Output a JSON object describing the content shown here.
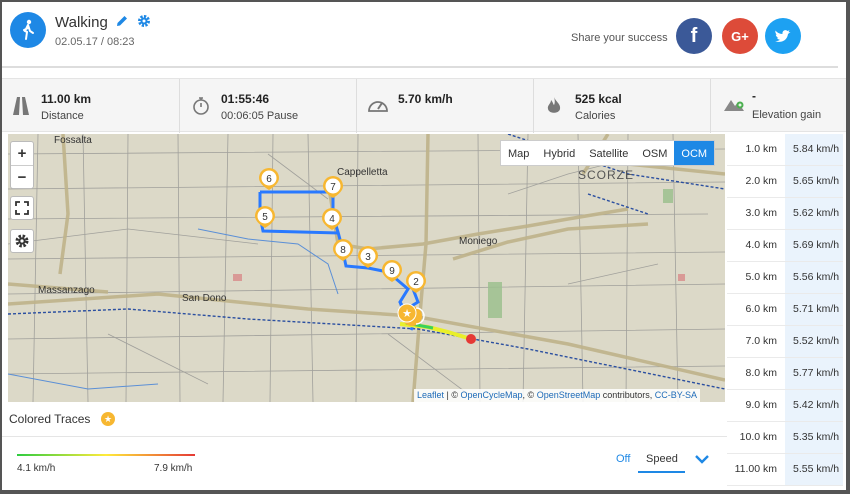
{
  "activity": {
    "title": "Walking",
    "date": "02.05.17 / 08:23"
  },
  "share": {
    "text": "Share your success",
    "facebook": "f",
    "google": "G+"
  },
  "stats": [
    {
      "icon": "road-icon",
      "value": "11.00 km",
      "label": "Distance"
    },
    {
      "icon": "stopwatch-icon",
      "value": "01:55:46",
      "label": "00:06:05 Pause"
    },
    {
      "icon": "speedometer-icon",
      "value": "5.70 km/h",
      "label": ""
    },
    {
      "icon": "flame-icon",
      "value": "525 kcal",
      "label": "Calories"
    },
    {
      "icon": "elevation-icon",
      "value": "-",
      "label": "Elevation gain"
    }
  ],
  "map": {
    "layers": [
      "Map",
      "Hybrid",
      "Satellite",
      "OSM",
      "OCM"
    ],
    "active_layer": "OCM",
    "zoom_in": "+",
    "zoom_out": "−",
    "places": [
      "Fossalta",
      "Cappelletta",
      "SCORZE",
      "Moniego",
      "Massanzago",
      "San Dono"
    ],
    "markers": [
      "6",
      "7",
      "5",
      "4",
      "8",
      "3",
      "9",
      "2"
    ],
    "attribution": {
      "leaflet": "Leaflet",
      "sep1": " | © ",
      "ocm": "OpenCycleMap",
      "sep2": ", © ",
      "osm": "OpenStreetMap",
      "contrib": " contributors, ",
      "license": "CC-BY-SA"
    }
  },
  "splits": [
    {
      "km": "1.0 km",
      "speed": "5.84 km/h"
    },
    {
      "km": "2.0 km",
      "speed": "5.65 km/h"
    },
    {
      "km": "3.0 km",
      "speed": "5.62 km/h"
    },
    {
      "km": "4.0 km",
      "speed": "5.69 km/h"
    },
    {
      "km": "5.0 km",
      "speed": "5.56 km/h"
    },
    {
      "km": "6.0 km",
      "speed": "5.71 km/h"
    },
    {
      "km": "7.0 km",
      "speed": "5.52 km/h"
    },
    {
      "km": "8.0 km",
      "speed": "5.77 km/h"
    },
    {
      "km": "9.0 km",
      "speed": "5.42 km/h"
    },
    {
      "km": "10.0 km",
      "speed": "5.35 km/h"
    },
    {
      "km": "11.00 km",
      "speed": "5.55 km/h"
    }
  ],
  "traces": {
    "title": "Colored Traces",
    "badge": "★",
    "min": "4.1 km/h",
    "max": "7.9 km/h",
    "off_label": "Off",
    "mode": "Speed"
  },
  "colors": {
    "accent": "#1e88e5",
    "route": "#2979ff",
    "marker": "#f7b731"
  }
}
